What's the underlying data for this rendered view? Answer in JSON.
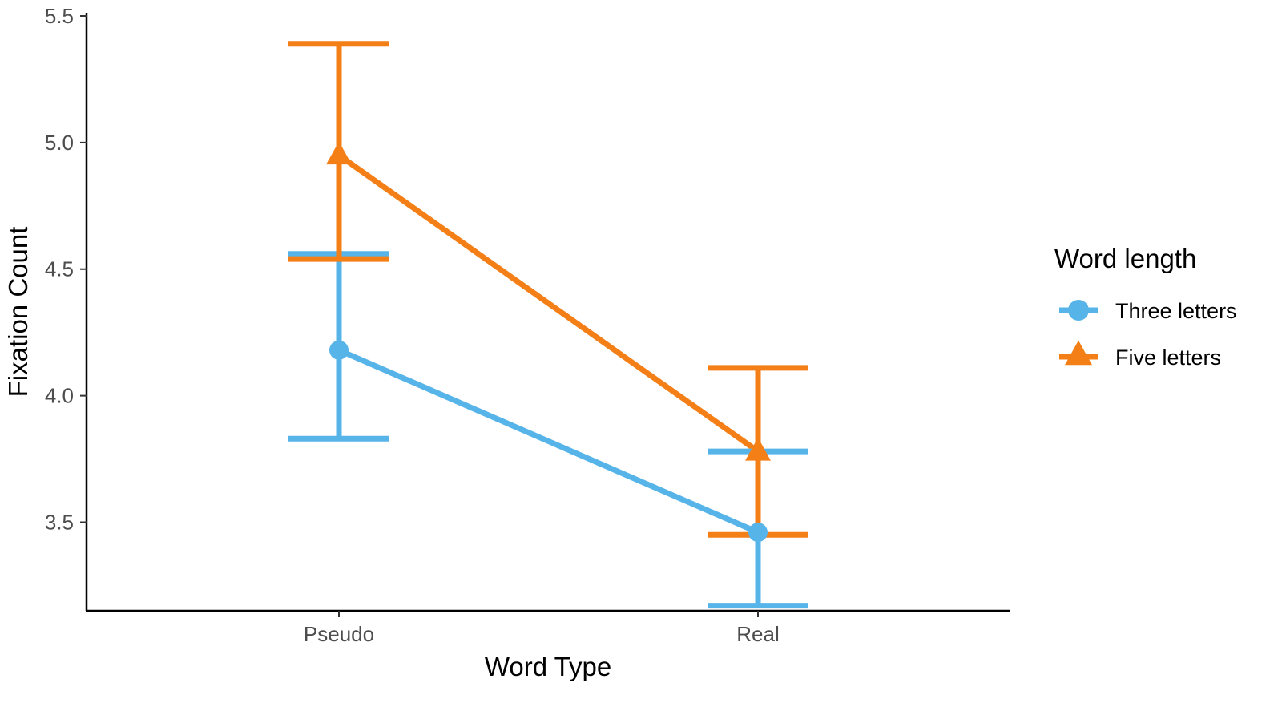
{
  "chart_data": {
    "type": "line",
    "xlabel": "Word Type",
    "ylabel": "Fixation Count",
    "categories": [
      "Pseudo",
      "Real"
    ],
    "ylim": [
      3.15,
      5.5
    ],
    "yticks": [
      3.5,
      4.0,
      4.5,
      5.0,
      5.5
    ],
    "ytick_labels": [
      "3.5",
      "4.0",
      "4.5",
      "5.0",
      "5.5"
    ],
    "grid": false,
    "legend": {
      "title": "Word length",
      "placement": "right"
    },
    "series": [
      {
        "name": "Three letters",
        "color": "#56B4E9",
        "marker": "circle",
        "values": [
          4.18,
          3.46
        ],
        "error_low": [
          3.83,
          3.17
        ],
        "error_high": [
          4.56,
          3.78
        ]
      },
      {
        "name": "Five letters",
        "color": "#F57F17",
        "marker": "triangle",
        "values": [
          4.95,
          3.78
        ],
        "error_low": [
          4.54,
          3.45
        ],
        "error_high": [
          5.39,
          4.11
        ]
      }
    ]
  }
}
